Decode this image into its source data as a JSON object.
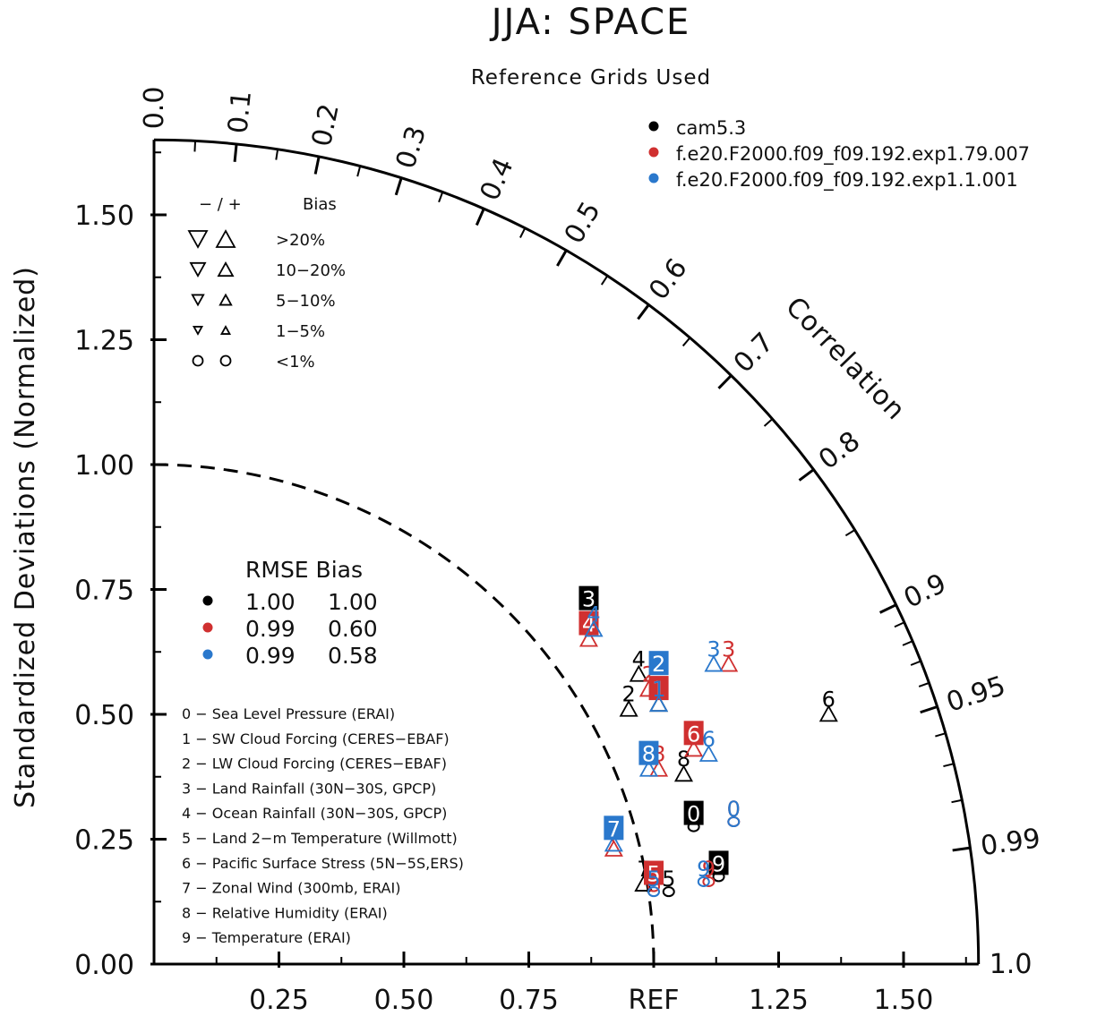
{
  "title": "JJA: SPACE",
  "subtitle": "Reference Grids Used",
  "colors": {
    "cam": "#000000",
    "red": "#d03030",
    "blue": "#2a78cc",
    "axis": "#000000"
  },
  "chart_data": {
    "type": "scatter",
    "diagram": "taylor",
    "ylabel": "Standardized Deviations (Normalized)",
    "y_ticks": [
      "0.00",
      "0.25",
      "0.50",
      "0.75",
      "1.00",
      "1.25",
      "1.50"
    ],
    "x_ticks": [
      "0.25",
      "0.50",
      "0.75",
      "REF",
      "1.25",
      "1.50"
    ],
    "correlation_label": "Correlation",
    "correlation_ticks": [
      "0.0",
      "0.1",
      "0.2",
      "0.3",
      "0.4",
      "0.5",
      "0.6",
      "0.7",
      "0.8",
      "0.9",
      "0.95",
      "0.99",
      "1.0"
    ],
    "max_std": 1.65,
    "reference_arc": 1.0,
    "series": [
      {
        "name": "cam5.3",
        "color_key": "cam",
        "rmse": "1.00",
        "bias": "1.00",
        "points": [
          {
            "id": "0",
            "x": 1.08,
            "y": 0.3,
            "marker": "o",
            "highlight": true
          },
          {
            "id": "1",
            "x": 1.01,
            "y": 0.55,
            "marker": "up"
          },
          {
            "id": "2",
            "x": 0.95,
            "y": 0.54,
            "marker": "up"
          },
          {
            "id": "3",
            "x": 0.87,
            "y": 0.73,
            "marker": "none",
            "highlight": true
          },
          {
            "id": "4",
            "x": 0.97,
            "y": 0.61,
            "marker": "up"
          },
          {
            "id": "5",
            "x": 1.03,
            "y": 0.17,
            "marker": "o"
          },
          {
            "id": "6",
            "x": 1.35,
            "y": 0.53,
            "marker": "up"
          },
          {
            "id": "7",
            "x": 0.98,
            "y": 0.19,
            "marker": "up"
          },
          {
            "id": "8",
            "x": 1.06,
            "y": 0.41,
            "marker": "up"
          },
          {
            "id": "9",
            "x": 1.13,
            "y": 0.2,
            "marker": "o",
            "highlight": true
          }
        ]
      },
      {
        "name": "f.e20.F2000.f09_f09.192.exp1.79.007",
        "color_key": "red",
        "rmse": "0.99",
        "bias": "0.60",
        "points": [
          {
            "id": "0",
            "x": 1.16,
            "y": 0.31,
            "marker": "o"
          },
          {
            "id": "1",
            "x": 1.01,
            "y": 0.55,
            "marker": "none",
            "highlight": true
          },
          {
            "id": "2",
            "x": 0.99,
            "y": 0.58,
            "marker": "up"
          },
          {
            "id": "3",
            "x": 1.15,
            "y": 0.63,
            "marker": "up"
          },
          {
            "id": "4",
            "x": 0.87,
            "y": 0.68,
            "marker": "up",
            "highlight": true
          },
          {
            "id": "5",
            "x": 1.0,
            "y": 0.18,
            "marker": "o",
            "highlight": true
          },
          {
            "id": "6",
            "x": 1.08,
            "y": 0.46,
            "marker": "up",
            "highlight": true
          },
          {
            "id": "7",
            "x": 0.92,
            "y": 0.26,
            "marker": "up"
          },
          {
            "id": "8",
            "x": 1.01,
            "y": 0.42,
            "marker": "up"
          },
          {
            "id": "9",
            "x": 1.11,
            "y": 0.19,
            "marker": "o"
          }
        ]
      },
      {
        "name": "f.e20.F2000.f09_f09.192.exp1.1.001",
        "color_key": "blue",
        "rmse": "0.99",
        "bias": "0.58",
        "points": [
          {
            "id": "0",
            "x": 1.16,
            "y": 0.31,
            "marker": "o"
          },
          {
            "id": "1",
            "x": 1.01,
            "y": 0.55,
            "marker": "up"
          },
          {
            "id": "2",
            "x": 1.01,
            "y": 0.6,
            "marker": "none",
            "highlight": true
          },
          {
            "id": "3",
            "x": 1.12,
            "y": 0.63,
            "marker": "up"
          },
          {
            "id": "4",
            "x": 0.88,
            "y": 0.7,
            "marker": "up"
          },
          {
            "id": "5",
            "x": 1.0,
            "y": 0.17,
            "marker": "o"
          },
          {
            "id": "6",
            "x": 1.11,
            "y": 0.45,
            "marker": "up"
          },
          {
            "id": "7",
            "x": 0.92,
            "y": 0.27,
            "marker": "up",
            "highlight": true
          },
          {
            "id": "8",
            "x": 0.99,
            "y": 0.42,
            "marker": "up",
            "highlight": true
          },
          {
            "id": "9",
            "x": 1.1,
            "y": 0.19,
            "marker": "o"
          }
        ]
      }
    ]
  },
  "bias_legend": {
    "header_sign": "− / +",
    "header_bias": "Bias",
    "rows": [
      {
        "label": ">20%",
        "size": 1.0,
        "shape": "triangle"
      },
      {
        "label": "10−20%",
        "size": 0.8,
        "shape": "triangle"
      },
      {
        "label": "5−10%",
        "size": 0.62,
        "shape": "triangle"
      },
      {
        "label": "1−5%",
        "size": 0.45,
        "shape": "triangle"
      },
      {
        "label": "<1%",
        "size": 0.55,
        "shape": "circle"
      }
    ]
  },
  "stats_legend": {
    "header": "RMSE Bias"
  },
  "case_legend": [
    "0 − Sea Level Pressure (ERAI)",
    "1 − SW Cloud Forcing (CERES−EBAF)",
    "2 − LW Cloud Forcing (CERES−EBAF)",
    "3 − Land Rainfall (30N−30S, GPCP)",
    "4 − Ocean Rainfall (30N−30S, GPCP)",
    "5 − Land 2−m Temperature (Willmott)",
    "6 − Pacific Surface Stress (5N−5S,ERS)",
    "7 − Zonal Wind (300mb, ERAI)",
    "8 − Relative Humidity (ERAI)",
    "9 − Temperature (ERAI)"
  ]
}
